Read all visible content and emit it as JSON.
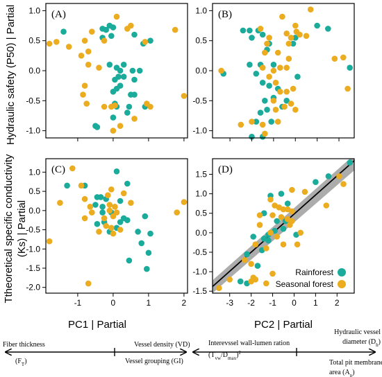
{
  "colors": {
    "rainforest": "#1aab9b",
    "seasonal": "#ebac20",
    "fit_line": "#000000",
    "ci_band": "#9e9e9e"
  },
  "ylabel_top": "Hydraulic safety (P50) | Partial",
  "ylabel_bottom_1": "Ttheoretical specific conductivity",
  "ylabel_bottom_2": "(Ks) | Partial",
  "xlabel_left": "PC1 | Partial",
  "xlabel_right": "PC2 | Partial",
  "legend": {
    "rainforest": "Rainforest",
    "seasonal": "Seasonal forest"
  },
  "annotations": {
    "fiber_1": "Fiber thickness",
    "fiber_2": "(F",
    "fiber_sub": "T",
    "fiber_end": ")",
    "vd": "Vessel density (VD)",
    "gi": "Vessel grouping (GI)",
    "iv_1": "Interevssel wall-lumen ration",
    "iv_2": "(T",
    "iv_sub1": "vw",
    "iv_mid": "/D",
    "iv_sub2": "max",
    "iv_end": ")",
    "iv_sup": "2",
    "hvd_1": "Hydraulic vessel",
    "hvd_2": "diameter (D",
    "hvd_sub": "h",
    "hvd_end": ")",
    "tpm_1": "Total pit membrane",
    "tpm_2": "area (A",
    "tpm_sub": "p",
    "tpm_end": ")"
  },
  "chart_data": [
    {
      "panel": "(A)",
      "type": "scatter",
      "xlim": [
        -1.9,
        2.1
      ],
      "ylim": [
        -1.12,
        1.12
      ],
      "xticks": [
        "-1",
        "0",
        "1",
        "2"
      ],
      "yticks": [
        "1.0",
        "0.5",
        "0.0",
        "-0.5",
        "-1.0"
      ],
      "x_tick_labels_shown": false,
      "y_tick_labels_shown": true,
      "series": [
        {
          "name": "Rainforest",
          "points": [
            [
              -1.4,
              0.65
            ],
            [
              -0.3,
              0.7
            ],
            [
              -0.2,
              0.68
            ],
            [
              -0.1,
              0.75
            ],
            [
              0.0,
              0.72
            ],
            [
              -0.3,
              0.55
            ],
            [
              -0.05,
              0.58
            ],
            [
              0.6,
              0.6
            ],
            [
              0.85,
              0.45
            ],
            [
              1.05,
              0.5
            ],
            [
              -0.1,
              0.1
            ],
            [
              0.1,
              0.05
            ],
            [
              0.3,
              0.1
            ],
            [
              0.2,
              0.0
            ],
            [
              0.55,
              0.0
            ],
            [
              0.75,
              0.0
            ],
            [
              0.15,
              -0.1
            ],
            [
              0.3,
              -0.1
            ],
            [
              0.6,
              -0.15
            ],
            [
              0.05,
              -0.15
            ],
            [
              0.2,
              -0.25
            ],
            [
              0.0,
              -0.35
            ],
            [
              0.1,
              -0.3
            ],
            [
              0.05,
              -0.55
            ],
            [
              0.1,
              -0.6
            ],
            [
              0.5,
              -0.4
            ],
            [
              0.6,
              -0.4
            ],
            [
              0.45,
              -0.6
            ],
            [
              0.9,
              -0.6
            ],
            [
              0.4,
              -0.7
            ],
            [
              0.0,
              -0.78
            ],
            [
              -0.5,
              -0.92
            ],
            [
              -0.45,
              -0.94
            ]
          ]
        },
        {
          "name": "Seasonal forest",
          "points": [
            [
              0.1,
              0.9
            ],
            [
              0.4,
              0.7
            ],
            [
              -1.8,
              0.45
            ],
            [
              -1.6,
              0.48
            ],
            [
              -1.25,
              0.4
            ],
            [
              -0.8,
              0.5
            ],
            [
              -0.6,
              0.65
            ],
            [
              -0.25,
              0.5
            ],
            [
              0.5,
              0.75
            ],
            [
              0.9,
              0.48
            ],
            [
              1.75,
              0.68
            ],
            [
              -0.7,
              0.32
            ],
            [
              -0.9,
              0.25
            ],
            [
              -0.7,
              0.1
            ],
            [
              -0.4,
              0.05
            ],
            [
              -0.8,
              -0.25
            ],
            [
              -0.75,
              -0.55
            ],
            [
              -0.25,
              -0.6
            ],
            [
              -0.05,
              -0.6
            ],
            [
              -0.85,
              -0.4
            ],
            [
              0.95,
              -0.55
            ],
            [
              1.05,
              -0.6
            ],
            [
              2.0,
              -0.42
            ],
            [
              0.2,
              -0.92
            ],
            [
              0.6,
              -0.8
            ],
            [
              0.0,
              -1.0
            ],
            [
              0.05,
              -0.58
            ]
          ]
        }
      ]
    },
    {
      "panel": "(B)",
      "type": "scatter",
      "xlim": [
        -3.8,
        2.7
      ],
      "ylim": [
        -1.12,
        1.12
      ],
      "xticks": [
        "-3",
        "-2",
        "-1",
        "0",
        "1",
        "2"
      ],
      "yticks": [
        "1.0",
        "0.5",
        "0.0",
        "-0.5",
        "-1.0"
      ],
      "x_tick_labels_shown": false,
      "y_tick_labels_shown": true,
      "series": [
        {
          "name": "Rainforest",
          "points": [
            [
              -2.4,
              0.67
            ],
            [
              -2.1,
              0.67
            ],
            [
              -1.7,
              0.67
            ],
            [
              -1.5,
              0.6
            ],
            [
              -2.0,
              0.55
            ],
            [
              -1.2,
              0.45
            ],
            [
              -1.3,
              0.35
            ],
            [
              0.0,
              0.55
            ],
            [
              -0.1,
              0.45
            ],
            [
              1.5,
              0.7
            ],
            [
              1.0,
              0.75
            ],
            [
              2.5,
              0.05
            ],
            [
              -3.3,
              -0.05
            ],
            [
              -2.1,
              0.1
            ],
            [
              -1.8,
              -0.05
            ],
            [
              -1.6,
              0.1
            ],
            [
              -1.0,
              0.1
            ],
            [
              -1.5,
              -0.2
            ],
            [
              -1.2,
              -0.25
            ],
            [
              -0.8,
              -0.3
            ],
            [
              -1.0,
              -0.45
            ],
            [
              -1.4,
              -0.5
            ],
            [
              -1.6,
              -0.7
            ],
            [
              -1.3,
              -0.65
            ],
            [
              -0.6,
              -0.6
            ],
            [
              -1.8,
              -0.85
            ],
            [
              -1.1,
              -0.85
            ],
            [
              -1.5,
              -1.1
            ],
            [
              -2.0,
              -1.1
            ],
            [
              -0.4,
              -0.5
            ],
            [
              0.1,
              -0.1
            ]
          ]
        },
        {
          "name": "Seasonal forest",
          "points": [
            [
              0.7,
              1.02
            ],
            [
              -0.6,
              0.9
            ],
            [
              0.0,
              0.75
            ],
            [
              -1.6,
              0.7
            ],
            [
              -0.4,
              0.62
            ],
            [
              -0.2,
              0.55
            ],
            [
              -0.3,
              0.45
            ],
            [
              -1.2,
              0.55
            ],
            [
              -1.3,
              0.45
            ],
            [
              -1.4,
              0.3
            ],
            [
              -0.8,
              0.3
            ],
            [
              -0.3,
              0.2
            ],
            [
              0.2,
              0.6
            ],
            [
              0.5,
              0.58
            ],
            [
              -3.4,
              0.0
            ],
            [
              -1.5,
              0.05
            ],
            [
              -1.0,
              0.0
            ],
            [
              -0.7,
              0.05
            ],
            [
              -0.4,
              0.05
            ],
            [
              -1.2,
              -0.1
            ],
            [
              -0.9,
              -0.2
            ],
            [
              -0.7,
              -0.35
            ],
            [
              -0.4,
              -0.35
            ],
            [
              -1.0,
              -0.5
            ],
            [
              -0.2,
              -0.55
            ],
            [
              -0.5,
              -0.6
            ],
            [
              0.0,
              -0.65
            ],
            [
              -0.9,
              -0.65
            ],
            [
              -0.8,
              -0.85
            ],
            [
              -1.4,
              -1.05
            ],
            [
              -2.0,
              -0.85
            ],
            [
              -2.5,
              -0.9
            ],
            [
              -1.5,
              -0.9
            ],
            [
              1.8,
              0.2
            ],
            [
              2.2,
              0.22
            ],
            [
              2.4,
              -0.3
            ],
            [
              -0.1,
              -0.3
            ],
            [
              0.05,
              0.65
            ]
          ]
        }
      ]
    },
    {
      "panel": "(C)",
      "type": "scatter",
      "xlim": [
        -1.9,
        2.1
      ],
      "ylim": [
        -2.15,
        1.35
      ],
      "xticks": [
        "-1",
        "0",
        "1",
        "2"
      ],
      "yticks": [
        "1.0",
        "0.5",
        "0.0",
        "-0.5",
        "-1.0",
        "-1.5",
        "-2.0"
      ],
      "x_tick_labels_shown": true,
      "y_tick_labels_shown": true,
      "series": [
        {
          "name": "Rainforest",
          "points": [
            [
              -1.3,
              0.65
            ],
            [
              0.1,
              1.02
            ],
            [
              -0.8,
              0.65
            ],
            [
              0.4,
              0.7
            ],
            [
              -0.45,
              0.35
            ],
            [
              -0.35,
              0.35
            ],
            [
              -0.2,
              0.3
            ],
            [
              -0.5,
              0.15
            ],
            [
              -0.3,
              0.1
            ],
            [
              0.2,
              0.25
            ],
            [
              -0.3,
              -0.05
            ],
            [
              -0.05,
              -0.05
            ],
            [
              0.3,
              -0.2
            ],
            [
              0.4,
              -0.25
            ],
            [
              0.2,
              -0.3
            ],
            [
              -0.45,
              -0.35
            ],
            [
              0.1,
              -0.45
            ],
            [
              0.7,
              -0.55
            ],
            [
              0.9,
              -0.15
            ],
            [
              1.05,
              -0.6
            ],
            [
              -0.1,
              -0.55
            ],
            [
              0.45,
              -1.3
            ],
            [
              0.8,
              -0.85
            ],
            [
              1.0,
              -1.1
            ],
            [
              0.95,
              -1.52
            ],
            [
              -0.25,
              -0.3
            ]
          ]
        },
        {
          "name": "Seasonal forest",
          "points": [
            [
              -1.15,
              1.1
            ],
            [
              -0.9,
              0.65
            ],
            [
              -0.05,
              0.55
            ],
            [
              0.3,
              0.45
            ],
            [
              0.5,
              0.2
            ],
            [
              -1.5,
              0.2
            ],
            [
              -0.8,
              0.3
            ],
            [
              -0.65,
              0.1
            ],
            [
              -0.6,
              -0.05
            ],
            [
              -0.8,
              -0.2
            ],
            [
              -0.1,
              0.15
            ],
            [
              0.05,
              0.1
            ],
            [
              -0.1,
              0.0
            ],
            [
              0.0,
              -0.15
            ],
            [
              -0.25,
              -0.2
            ],
            [
              -0.2,
              -0.4
            ],
            [
              -0.05,
              -0.45
            ],
            [
              0.2,
              -0.5
            ],
            [
              0.0,
              -0.6
            ],
            [
              -0.4,
              -0.55
            ],
            [
              1.8,
              -0.05
            ],
            [
              2.0,
              0.22
            ],
            [
              -1.8,
              -0.8
            ],
            [
              -0.7,
              -1.9
            ],
            [
              0.1,
              -0.05
            ],
            [
              -0.15,
              0.4
            ]
          ]
        }
      ]
    },
    {
      "panel": "(D)",
      "type": "scatter",
      "xlim": [
        -3.8,
        2.8
      ],
      "ylim": [
        -1.55,
        1.9
      ],
      "xticks": [
        "-3",
        "-2",
        "-1",
        "0",
        "1",
        "2"
      ],
      "yticks": [
        "1.5",
        "1.0",
        "0.5",
        "0.0",
        "-0.5",
        "-1.0",
        "-1.5"
      ],
      "x_tick_labels_shown": true,
      "y_tick_labels_shown": true,
      "fit": {
        "x": [
          -3.8,
          2.8
        ],
        "y": [
          -1.38,
          1.85
        ],
        "ci_low": [
          -1.55,
          1.6
        ],
        "ci_high": [
          -1.22,
          2.0
        ]
      },
      "series": [
        {
          "name": "Rainforest",
          "points": [
            [
              2.6,
              1.8
            ],
            [
              1.6,
              1.45
            ],
            [
              1.0,
              1.3
            ],
            [
              -1.1,
              0.95
            ],
            [
              -0.6,
              1.0
            ],
            [
              -0.3,
              0.75
            ],
            [
              -1.4,
              0.5
            ],
            [
              -0.8,
              0.3
            ],
            [
              -0.4,
              0.3
            ],
            [
              -1.9,
              -0.1
            ],
            [
              -1.4,
              -0.15
            ],
            [
              -1.2,
              -0.05
            ],
            [
              -0.9,
              0.05
            ],
            [
              -0.5,
              0.1
            ],
            [
              0.1,
              -0.05
            ],
            [
              -1.5,
              -0.45
            ],
            [
              -2.2,
              -0.55
            ],
            [
              -1.7,
              -0.85
            ],
            [
              -2.5,
              -1.25
            ],
            [
              -2.2,
              -1.3
            ],
            [
              -1.2,
              -0.2
            ]
          ]
        },
        {
          "name": "Seasonal forest",
          "points": [
            [
              2.3,
              1.25
            ],
            [
              0.5,
              1.05
            ],
            [
              -0.1,
              1.1
            ],
            [
              -0.9,
              0.7
            ],
            [
              -0.7,
              0.65
            ],
            [
              -0.5,
              0.6
            ],
            [
              -0.3,
              0.6
            ],
            [
              -0.1,
              0.55
            ],
            [
              -1.6,
              0.45
            ],
            [
              -1.0,
              0.45
            ],
            [
              -0.6,
              0.4
            ],
            [
              -0.3,
              0.35
            ],
            [
              -1.6,
              0.2
            ],
            [
              -0.2,
              0.2
            ],
            [
              0.3,
              0.0
            ],
            [
              -1.1,
              0.0
            ],
            [
              -0.8,
              -0.1
            ],
            [
              -1.8,
              -0.3
            ],
            [
              -0.5,
              -0.3
            ],
            [
              -1.3,
              -0.4
            ],
            [
              -2.3,
              -0.7
            ],
            [
              -2.0,
              -0.8
            ],
            [
              -1.9,
              -1.15
            ],
            [
              -1.0,
              -1.05
            ],
            [
              -1.3,
              -1.3
            ],
            [
              -2.0,
              -1.25
            ],
            [
              -3.0,
              -1.2
            ],
            [
              -3.5,
              -1.42
            ],
            [
              -1.8,
              -1.2
            ],
            [
              0.15,
              -0.3
            ],
            [
              1.5,
              0.7
            ],
            [
              2.1,
              1.45
            ],
            [
              -1.1,
              0.85
            ],
            [
              -0.1,
              0.3
            ]
          ]
        }
      ]
    }
  ]
}
